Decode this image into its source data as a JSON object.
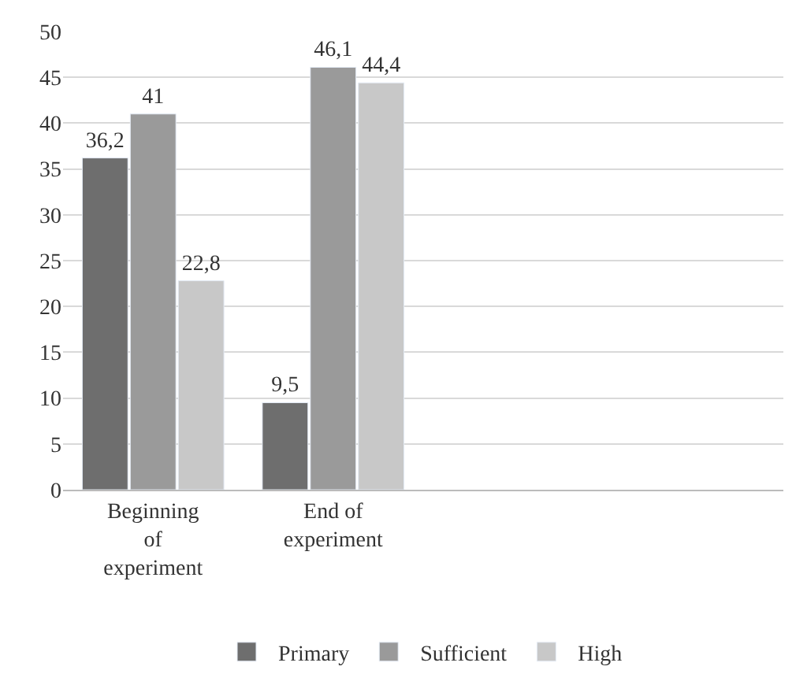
{
  "chart_data": {
    "type": "bar",
    "categories": [
      "Beginning of experiment",
      "End of experiment"
    ],
    "series": [
      {
        "name": "Primary",
        "color": "#6e6e6e",
        "values": [
          36.2,
          9.5
        ],
        "value_labels": [
          "36,2",
          "9,5"
        ]
      },
      {
        "name": "Sufficient",
        "color": "#9a9a9a",
        "values": [
          41,
          46.1
        ],
        "value_labels": [
          "41",
          "46,1"
        ]
      },
      {
        "name": "High",
        "color": "#c8c8c8",
        "values": [
          22.8,
          44.4
        ],
        "value_labels": [
          "22,8",
          "44,4"
        ]
      }
    ],
    "ylim": [
      0,
      50
    ],
    "yticks": [
      0,
      5,
      10,
      15,
      20,
      25,
      30,
      35,
      40,
      45,
      50
    ],
    "grid": "y",
    "legend": "bottom"
  }
}
